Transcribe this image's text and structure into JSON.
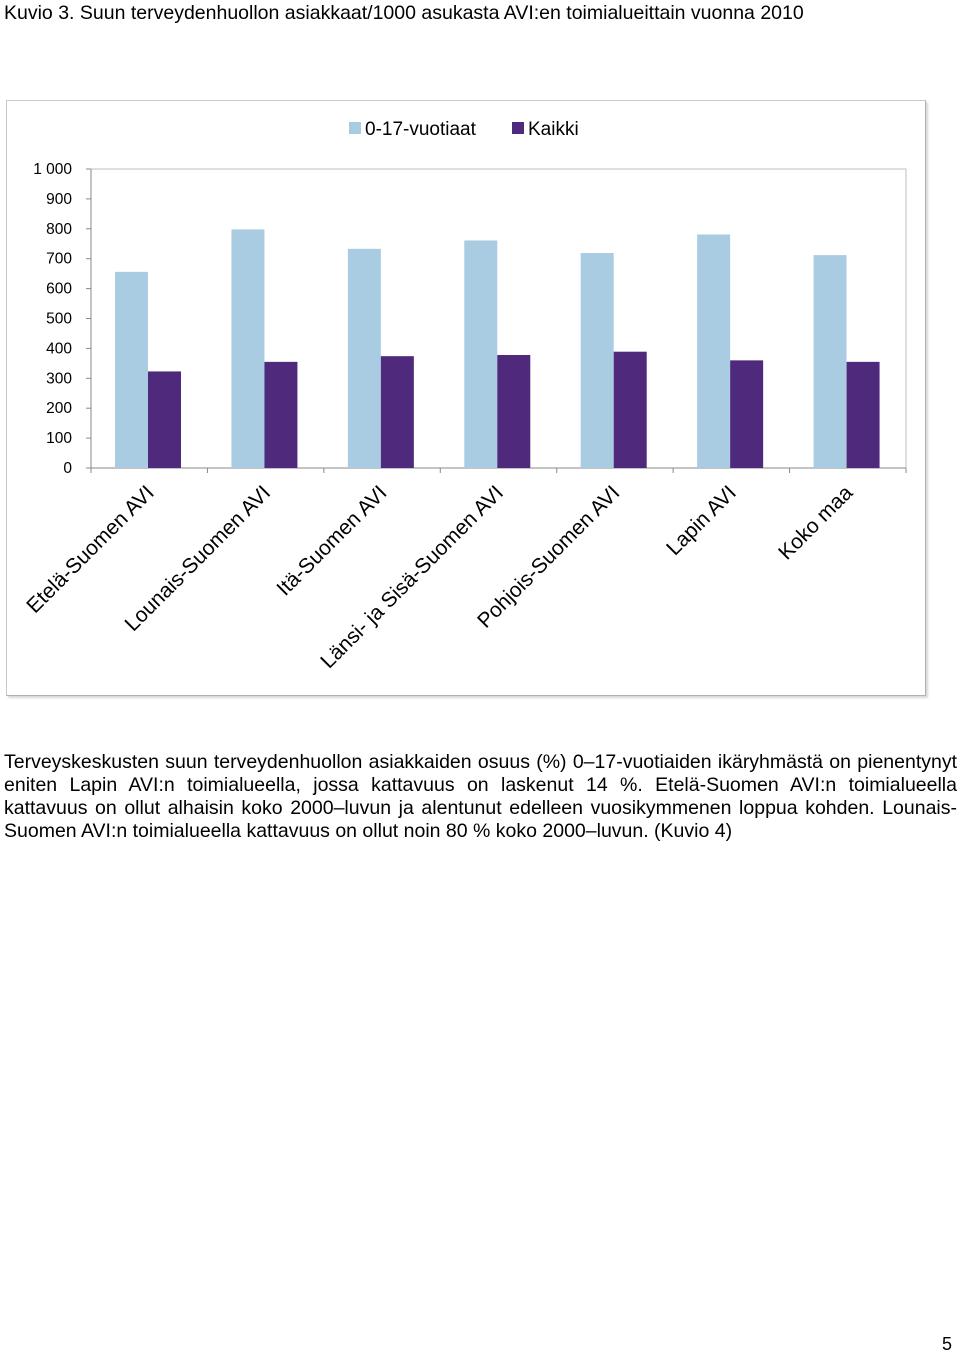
{
  "caption": {
    "label": "Kuvio 3.",
    "text": "Suun terveydenhuollon asiakkaat/1000 asukasta AVI:en toimialueittain vuonna 2010"
  },
  "chart_data": {
    "type": "bar",
    "title": "Suun terveydenhuollon asiakkaat/1000 asukasta AVI:en toimialueittain vuonna 2010",
    "xlabel": "",
    "ylabel": "",
    "ylim": [
      0,
      1000
    ],
    "yticks": [
      0,
      100,
      200,
      300,
      400,
      500,
      600,
      700,
      800,
      900,
      1000
    ],
    "ytick_labels": [
      "0",
      "100",
      "200",
      "300",
      "400",
      "500",
      "600",
      "700",
      "800",
      "900",
      "1 000"
    ],
    "grid": false,
    "legend_position": "top-right",
    "categories": [
      "Etelä-Suomen AVI",
      "Lounais-Suomen AVI",
      "Itä-Suomen AVI",
      "Länsi- ja Sisä-Suomen AVI",
      "Pohjois-Suomen AVI",
      "Lapin AVI",
      "Koko maa"
    ],
    "series": [
      {
        "name": "0-17-vuotiaat",
        "color": "#a9cce3",
        "values": [
          656,
          798,
          733,
          761,
          719,
          781,
          712
        ]
      },
      {
        "name": "Kaikki",
        "color": "#4f2a7c",
        "values": [
          323,
          355,
          374,
          378,
          389,
          360,
          355
        ]
      }
    ]
  },
  "body_text": "Terveyskeskusten suun terveydenhuollon asiakkaiden osuus (%) 0–17-vuotiaiden ikäryhmästä on pienentynyt eniten Lapin AVI:n toimialueella, jossa kattavuus on laskenut 14 %. Etelä-Suomen AVI:n toimialueella kattavuus on ollut alhaisin koko 2000–luvun ja alentunut edelleen vuosikymmenen loppua kohden. Lounais-Suomen AVI:n toimialueella kattavuus on ollut noin 80 % koko 2000–luvun. (Kuvio 4)",
  "page_number": "5"
}
